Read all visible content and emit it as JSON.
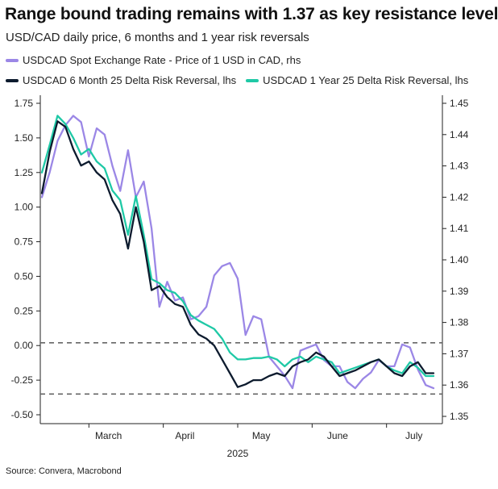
{
  "chart_data": {
    "type": "line",
    "title": "Range bound trading remains with 1.37 as key resistance level",
    "subtitle": "USD/CAD daily price, 6 months and 1 year risk reversals",
    "source": "Source: Convera, Macrobond",
    "xlabel": "2025",
    "x_ticks": [
      "March",
      "April",
      "May",
      "June",
      "July"
    ],
    "left_axis": {
      "label": "lhs",
      "ylim": [
        -0.55,
        1.8
      ],
      "ticks": [
        "1.75",
        "1.50",
        "1.25",
        "1.00",
        "0.75",
        "0.50",
        "0.25",
        "0.00",
        "-0.25",
        "-0.50"
      ]
    },
    "right_axis": {
      "label": "rhs",
      "ylim": [
        1.346,
        1.4545
      ],
      "ticks": [
        "1.45",
        "1.44",
        "1.43",
        "1.42",
        "1.41",
        "1.40",
        "1.39",
        "1.38",
        "1.37",
        "1.36",
        "1.35"
      ]
    },
    "reference_lines_lhs": [
      0.02,
      -0.35
    ],
    "x_range": [
      0,
      100
    ],
    "series": [
      {
        "name": "USDCAD Spot Exchange Rate - Price of 1 USD in CAD, rhs",
        "axis": "right",
        "color": "#9b87e6",
        "x": [
          0,
          2,
          4,
          6,
          8,
          10,
          12,
          14,
          16,
          18,
          20,
          22,
          24,
          26,
          28,
          30,
          32,
          34,
          36,
          38,
          40,
          42,
          44,
          46,
          48,
          50,
          52,
          54,
          56,
          58,
          60,
          62,
          64,
          66,
          68,
          70,
          72,
          74,
          76,
          78,
          80,
          82,
          84,
          86,
          88,
          90,
          92,
          94,
          96,
          98,
          100
        ],
        "values": [
          1.42,
          1.428,
          1.438,
          1.443,
          1.446,
          1.444,
          1.433,
          1.442,
          1.44,
          1.43,
          1.422,
          1.435,
          1.42,
          1.425,
          1.41,
          1.385,
          1.393,
          1.387,
          1.388,
          1.381,
          1.382,
          1.385,
          1.395,
          1.398,
          1.399,
          1.394,
          1.376,
          1.382,
          1.381,
          1.369,
          1.366,
          1.363,
          1.359,
          1.371,
          1.372,
          1.373,
          1.368,
          1.366,
          1.366,
          1.361,
          1.359,
          1.362,
          1.364,
          1.368,
          1.366,
          1.366,
          1.373,
          1.372,
          1.365,
          1.36,
          1.359
        ]
      },
      {
        "name": "USDCAD 6 Month 25 Delta Risk Reversal, lhs",
        "axis": "left",
        "color": "#0d1b2e",
        "x": [
          0,
          2,
          4,
          6,
          8,
          10,
          12,
          14,
          16,
          18,
          20,
          22,
          24,
          26,
          28,
          30,
          32,
          34,
          36,
          38,
          40,
          42,
          44,
          46,
          48,
          50,
          52,
          54,
          56,
          58,
          60,
          62,
          64,
          66,
          68,
          70,
          72,
          74,
          76,
          78,
          80,
          82,
          84,
          86,
          88,
          90,
          92,
          94,
          96,
          98,
          100
        ],
        "values": [
          1.1,
          1.4,
          1.62,
          1.58,
          1.42,
          1.3,
          1.33,
          1.25,
          1.2,
          1.05,
          0.95,
          0.7,
          1.0,
          0.75,
          0.4,
          0.43,
          0.35,
          0.3,
          0.28,
          0.15,
          0.08,
          0.05,
          0.0,
          -0.1,
          -0.2,
          -0.3,
          -0.28,
          -0.25,
          -0.25,
          -0.22,
          -0.2,
          -0.22,
          -0.15,
          -0.12,
          -0.1,
          -0.05,
          -0.08,
          -0.15,
          -0.22,
          -0.2,
          -0.18,
          -0.15,
          -0.12,
          -0.1,
          -0.15,
          -0.2,
          -0.22,
          -0.15,
          -0.12,
          -0.2,
          -0.2
        ]
      },
      {
        "name": "USDCAD 1 Year 25 Delta Risk Reversal, lhs",
        "axis": "left",
        "color": "#1fc9a6",
        "x": [
          0,
          2,
          4,
          6,
          8,
          10,
          12,
          14,
          16,
          18,
          20,
          22,
          24,
          26,
          28,
          30,
          32,
          34,
          36,
          38,
          40,
          42,
          44,
          46,
          48,
          50,
          52,
          54,
          56,
          58,
          60,
          62,
          64,
          66,
          68,
          70,
          72,
          74,
          76,
          78,
          80,
          82,
          84,
          86,
          88,
          90,
          92,
          94,
          96,
          98,
          100
        ],
        "values": [
          1.25,
          1.45,
          1.66,
          1.6,
          1.5,
          1.38,
          1.42,
          1.33,
          1.28,
          1.12,
          1.05,
          0.8,
          1.08,
          0.8,
          0.48,
          0.45,
          0.4,
          0.38,
          0.32,
          0.22,
          0.18,
          0.15,
          0.12,
          0.05,
          -0.05,
          -0.1,
          -0.1,
          -0.09,
          -0.09,
          -0.08,
          -0.1,
          -0.15,
          -0.1,
          -0.08,
          -0.12,
          -0.08,
          -0.1,
          -0.12,
          -0.2,
          -0.18,
          -0.16,
          -0.14,
          -0.12,
          -0.1,
          -0.15,
          -0.18,
          -0.2,
          -0.12,
          -0.16,
          -0.22,
          -0.22
        ]
      }
    ]
  }
}
